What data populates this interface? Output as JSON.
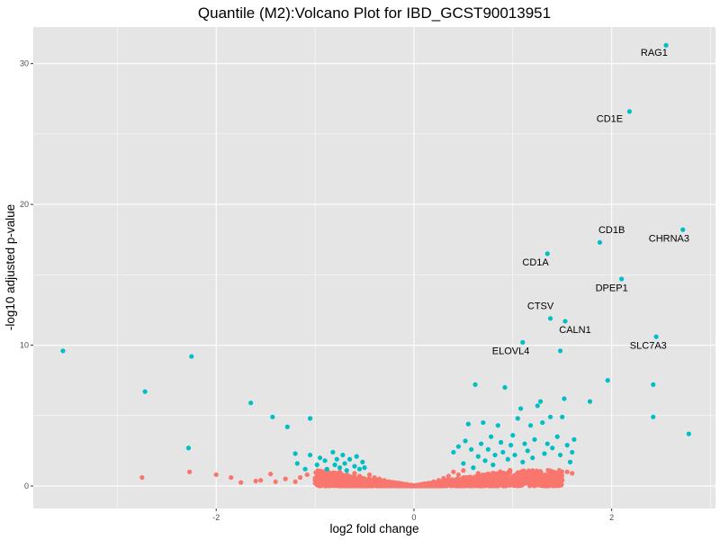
{
  "chart_data": {
    "type": "scatter",
    "title": "Quantile (M2):Volcano Plot for IBD_GCST90013951",
    "xlabel": "log2 fold change",
    "ylabel": "-log10 adjusted p-value",
    "xlim": [
      -3.85,
      3.05
    ],
    "ylim": [
      -1.6,
      32.6
    ],
    "x_ticks": [
      -2,
      0,
      2
    ],
    "y_ticks": [
      0,
      10,
      20,
      30
    ],
    "x_tick_labels": [
      "-2",
      "0",
      "2"
    ],
    "y_tick_labels": [
      "0",
      "10",
      "20",
      "30"
    ],
    "grid": true,
    "legend": "none",
    "colors": {
      "panel": "#e5e5e5",
      "grid": "#ffffff",
      "not_significant": "#f8766d",
      "significant": "#00bfc4"
    },
    "series": [
      {
        "points": [
          [
            -2.75,
            0.6
          ],
          [
            -2.27,
            1.0
          ],
          [
            -2.0,
            0.8
          ],
          [
            -1.85,
            0.6
          ],
          [
            -1.75,
            0.25
          ],
          [
            -1.6,
            0.35
          ],
          [
            -1.55,
            0.4
          ],
          [
            -1.45,
            0.85
          ],
          [
            -1.4,
            0.3
          ],
          [
            -1.3,
            0.5
          ],
          [
            -1.2,
            0.3
          ],
          [
            -1.15,
            0.6
          ],
          [
            -1.08,
            0.8
          ],
          [
            -1.0,
            0.4
          ],
          [
            -0.95,
            0.9
          ],
          [
            -0.9,
            0.5
          ],
          [
            -0.85,
            0.3
          ],
          [
            -0.8,
            0.7
          ],
          [
            -0.75,
            1.0
          ],
          [
            -0.7,
            0.6
          ],
          [
            -0.65,
            0.4
          ],
          [
            -0.6,
            0.9
          ],
          [
            -0.55,
            0.7
          ],
          [
            -0.5,
            0.5
          ],
          [
            -0.45,
            0.8
          ],
          [
            -0.4,
            0.6
          ],
          [
            -0.35,
            0.5
          ],
          [
            -0.3,
            0.4
          ],
          [
            -0.25,
            0.3
          ],
          [
            -0.2,
            0.25
          ],
          [
            -0.15,
            0.2
          ],
          [
            -0.1,
            0.1
          ],
          [
            -0.05,
            0.05
          ],
          [
            0.0,
            0.0
          ],
          [
            0.05,
            0.08
          ],
          [
            0.1,
            0.15
          ],
          [
            0.15,
            0.2
          ],
          [
            0.2,
            0.3
          ],
          [
            0.25,
            0.4
          ],
          [
            0.3,
            0.55
          ],
          [
            0.35,
            0.7
          ],
          [
            0.4,
            1.0
          ],
          [
            0.45,
            0.8
          ],
          [
            0.5,
            1.1
          ],
          [
            0.55,
            0.6
          ],
          [
            0.6,
            0.5
          ],
          [
            0.65,
            0.9
          ],
          [
            0.7,
            0.4
          ],
          [
            0.75,
            0.7
          ],
          [
            0.8,
            0.6
          ],
          [
            0.85,
            0.5
          ],
          [
            0.9,
            0.8
          ],
          [
            0.95,
            0.4
          ],
          [
            1.0,
            0.6
          ],
          [
            1.05,
            0.5
          ],
          [
            1.1,
            0.7
          ],
          [
            1.15,
            0.4
          ],
          [
            1.2,
            0.6
          ],
          [
            1.25,
            0.5
          ],
          [
            1.3,
            0.45
          ],
          [
            1.35,
            0.7
          ],
          [
            1.4,
            0.55
          ],
          [
            1.45,
            0.5
          ],
          [
            1.5,
            0.4
          ],
          [
            1.55,
            1.0
          ],
          [
            1.6,
            0.9
          ]
        ],
        "color": "#f8766d"
      },
      {
        "points": [
          [
            -3.55,
            9.6
          ],
          [
            -2.72,
            6.7
          ],
          [
            -2.25,
            9.2
          ],
          [
            -2.28,
            2.7
          ],
          [
            -1.65,
            5.9
          ],
          [
            -1.43,
            4.9
          ],
          [
            -1.28,
            4.2
          ],
          [
            -1.05,
            4.8
          ],
          [
            -1.2,
            2.3
          ],
          [
            -1.18,
            1.6
          ],
          [
            -1.1,
            1.2
          ],
          [
            -1.05,
            2.2
          ],
          [
            -0.98,
            1.5
          ],
          [
            -0.95,
            2.0
          ],
          [
            -0.9,
            1.8
          ],
          [
            -0.88,
            1.2
          ],
          [
            -0.82,
            2.4
          ],
          [
            -0.8,
            1.5
          ],
          [
            -0.78,
            1.9
          ],
          [
            -0.75,
            1.3
          ],
          [
            -0.72,
            2.2
          ],
          [
            -0.7,
            1.6
          ],
          [
            -0.68,
            1.1
          ],
          [
            -0.65,
            1.9
          ],
          [
            -0.6,
            1.4
          ],
          [
            -0.58,
            2.1
          ],
          [
            -0.55,
            1.2
          ],
          [
            -0.52,
            1.7
          ],
          [
            -0.5,
            1.3
          ],
          [
            0.4,
            2.4
          ],
          [
            0.45,
            2.8
          ],
          [
            0.5,
            1.6
          ],
          [
            0.52,
            3.2
          ],
          [
            0.55,
            4.4
          ],
          [
            0.58,
            2.6
          ],
          [
            0.6,
            1.3
          ],
          [
            0.62,
            7.2
          ],
          [
            0.65,
            2.1
          ],
          [
            0.68,
            3.0
          ],
          [
            0.7,
            4.5
          ],
          [
            0.72,
            1.8
          ],
          [
            0.75,
            2.6
          ],
          [
            0.78,
            3.5
          ],
          [
            0.8,
            1.5
          ],
          [
            0.82,
            2.2
          ],
          [
            0.85,
            4.3
          ],
          [
            0.88,
            3.1
          ],
          [
            0.9,
            2.4
          ],
          [
            0.92,
            7.0
          ],
          [
            0.95,
            1.9
          ],
          [
            0.98,
            2.9
          ],
          [
            1.0,
            3.6
          ],
          [
            1.02,
            2.2
          ],
          [
            1.05,
            4.8
          ],
          [
            1.08,
            5.5
          ],
          [
            1.1,
            1.7
          ],
          [
            1.12,
            3.0
          ],
          [
            1.15,
            2.5
          ],
          [
            1.18,
            4.3
          ],
          [
            1.2,
            2.0
          ],
          [
            1.22,
            3.3
          ],
          [
            1.25,
            5.7
          ],
          [
            1.28,
            6.0
          ],
          [
            1.3,
            4.5
          ],
          [
            1.32,
            2.3
          ],
          [
            1.35,
            3.0
          ],
          [
            1.38,
            4.9
          ],
          [
            1.4,
            2.7
          ],
          [
            1.45,
            3.5
          ],
          [
            1.48,
            2.2
          ],
          [
            1.5,
            4.9
          ],
          [
            1.52,
            6.2
          ],
          [
            1.55,
            2.9
          ],
          [
            1.58,
            1.7
          ],
          [
            1.6,
            2.4
          ],
          [
            1.62,
            3.3
          ],
          [
            1.78,
            6.0
          ],
          [
            1.96,
            7.5
          ],
          [
            2.42,
            7.2
          ],
          [
            2.42,
            4.9
          ],
          [
            2.78,
            3.7
          ],
          [
            1.1,
            10.2
          ],
          [
            1.48,
            9.6
          ],
          [
            2.45,
            10.6
          ],
          [
            1.38,
            11.9
          ],
          [
            1.53,
            11.7
          ],
          [
            2.1,
            14.7
          ],
          [
            1.88,
            17.3
          ],
          [
            1.35,
            16.5
          ],
          [
            2.72,
            18.2
          ],
          [
            2.18,
            26.6
          ],
          [
            2.55,
            31.3
          ]
        ],
        "color": "#00bfc4"
      }
    ],
    "labels": [
      {
        "text": "RAG1",
        "x": 2.55,
        "y": 31.3,
        "dx": -0.12,
        "dy": -0.75
      },
      {
        "text": "CD1E",
        "x": 2.18,
        "y": 26.6,
        "dx": -0.2,
        "dy": -0.75
      },
      {
        "text": "CD1B",
        "x": 1.88,
        "y": 17.3,
        "dx": 0.12,
        "dy": 0.65
      },
      {
        "text": "CHRNA3",
        "x": 2.72,
        "y": 18.2,
        "dx": -0.14,
        "dy": -0.85
      },
      {
        "text": "CD1A",
        "x": 1.35,
        "y": 16.5,
        "dx": -0.12,
        "dy": -0.85
      },
      {
        "text": "DPEP1",
        "x": 2.1,
        "y": 14.7,
        "dx": -0.1,
        "dy": -0.85
      },
      {
        "text": "CTSV",
        "x": 1.38,
        "y": 11.9,
        "dx": -0.1,
        "dy": 0.65
      },
      {
        "text": "CALN1",
        "x": 1.53,
        "y": 11.7,
        "dx": 0.1,
        "dy": -0.85
      },
      {
        "text": "SLC7A3",
        "x": 2.45,
        "y": 10.6,
        "dx": -0.08,
        "dy": -0.85
      },
      {
        "text": "ELOVL4",
        "x": 1.1,
        "y": 10.2,
        "dx": -0.12,
        "dy": -0.85
      }
    ]
  }
}
